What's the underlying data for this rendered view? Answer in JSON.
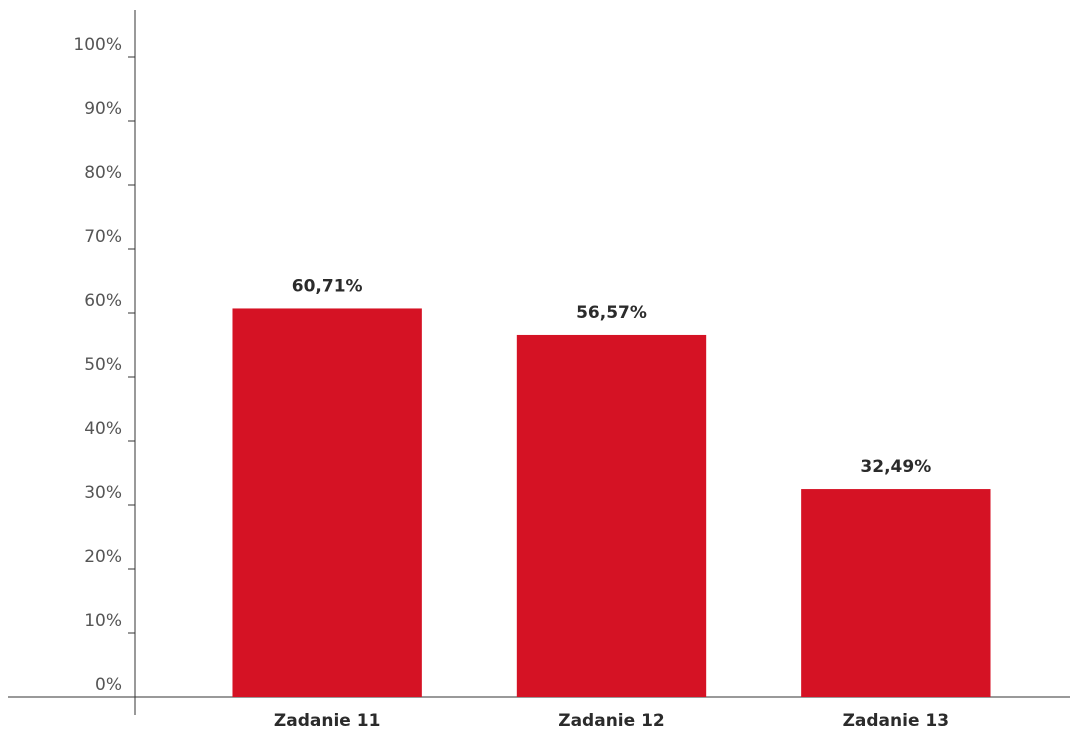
{
  "chart_data": {
    "type": "bar",
    "categories": [
      "Zadanie 11",
      "Zadanie 12",
      "Zadanie 13"
    ],
    "values": [
      60.71,
      56.57,
      32.49
    ],
    "value_labels": [
      "60,71%",
      "56,57%",
      "32,49%"
    ],
    "color": "#d51224",
    "ylim": [
      0,
      100
    ],
    "yticks": [
      {
        "value": 0,
        "label": "0%"
      },
      {
        "value": 10,
        "label": "10%"
      },
      {
        "value": 20,
        "label": "20%"
      },
      {
        "value": 30,
        "label": "30%"
      },
      {
        "value": 40,
        "label": "40%"
      },
      {
        "value": 50,
        "label": "50%"
      },
      {
        "value": 60,
        "label": "60%"
      },
      {
        "value": 70,
        "label": "70%"
      },
      {
        "value": 80,
        "label": "80%"
      },
      {
        "value": 90,
        "label": "90%"
      },
      {
        "value": 100,
        "label": "100%"
      }
    ],
    "grid": false
  }
}
